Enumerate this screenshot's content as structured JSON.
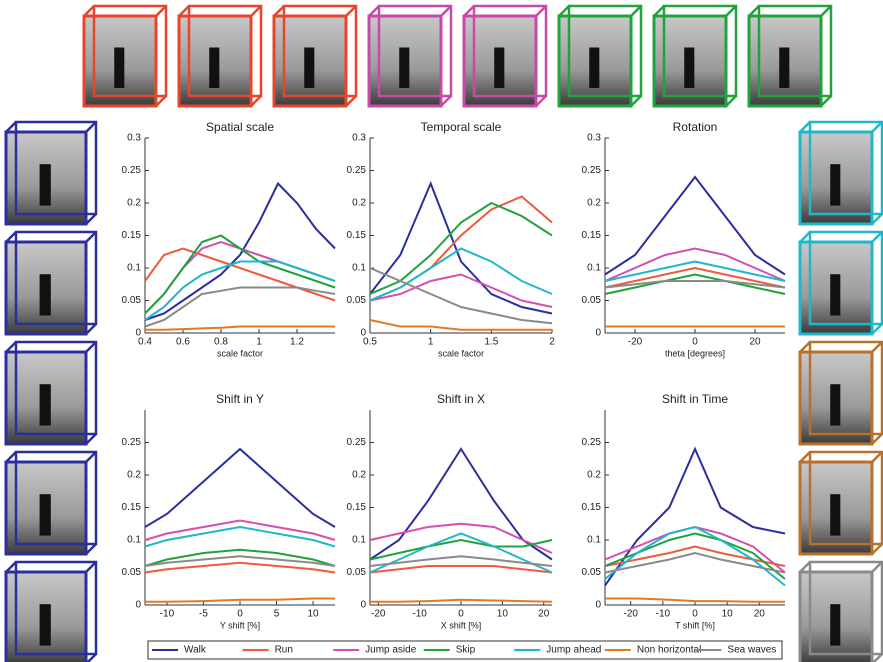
{
  "chart_data": [
    {
      "type": "line",
      "title": "Spatial scale",
      "xlabel": "scale factor",
      "xlim": [
        0.4,
        1.4
      ],
      "xticks": [
        0.4,
        0.6,
        0.8,
        1,
        1.2
      ],
      "ylim": [
        0,
        0.3
      ],
      "yticks": [
        0,
        0.05,
        0.1,
        0.15,
        0.2,
        0.25,
        0.3
      ],
      "x": [
        0.4,
        0.5,
        0.6,
        0.7,
        0.8,
        0.9,
        1.0,
        1.1,
        1.2,
        1.3,
        1.4
      ],
      "series": [
        [
          0.02,
          0.03,
          0.05,
          0.07,
          0.09,
          0.12,
          0.17,
          0.23,
          0.2,
          0.16,
          0.13
        ],
        [
          0.08,
          0.12,
          0.13,
          0.12,
          0.11,
          0.1,
          0.09,
          0.08,
          0.07,
          0.06,
          0.05
        ],
        [
          0.03,
          0.06,
          0.1,
          0.13,
          0.14,
          0.13,
          0.12,
          0.11,
          0.1,
          0.09,
          0.08
        ],
        [
          0.03,
          0.06,
          0.1,
          0.14,
          0.15,
          0.13,
          0.11,
          0.1,
          0.09,
          0.08,
          0.07
        ],
        [
          0.02,
          0.04,
          0.07,
          0.09,
          0.1,
          0.11,
          0.11,
          0.11,
          0.1,
          0.09,
          0.08
        ],
        [
          0.005,
          0.005,
          0.006,
          0.007,
          0.008,
          0.01,
          0.01,
          0.01,
          0.01,
          0.01,
          0.01
        ],
        [
          0.01,
          0.02,
          0.04,
          0.06,
          0.065,
          0.07,
          0.07,
          0.07,
          0.07,
          0.065,
          0.06
        ]
      ]
    },
    {
      "type": "line",
      "title": "Temporal scale",
      "xlabel": "scale factor",
      "xlim": [
        0.5,
        2
      ],
      "xticks": [
        0.5,
        1,
        1.5,
        2
      ],
      "ylim": [
        0,
        0.3
      ],
      "yticks": [
        0,
        0.05,
        0.1,
        0.15,
        0.2,
        0.25,
        0.3
      ],
      "x": [
        0.5,
        0.75,
        1,
        1.25,
        1.5,
        1.75,
        2
      ],
      "series": [
        [
          0.06,
          0.12,
          0.23,
          0.11,
          0.06,
          0.04,
          0.03
        ],
        [
          0.05,
          0.07,
          0.1,
          0.15,
          0.19,
          0.21,
          0.17
        ],
        [
          0.05,
          0.06,
          0.08,
          0.09,
          0.07,
          0.05,
          0.04
        ],
        [
          0.06,
          0.08,
          0.12,
          0.17,
          0.2,
          0.18,
          0.15
        ],
        [
          0.05,
          0.07,
          0.1,
          0.13,
          0.11,
          0.08,
          0.06
        ],
        [
          0.02,
          0.01,
          0.01,
          0.005,
          0.005,
          0.005,
          0.005
        ],
        [
          0.1,
          0.08,
          0.06,
          0.04,
          0.03,
          0.02,
          0.015
        ]
      ]
    },
    {
      "type": "line",
      "title": "Rotation",
      "xlabel": "theta [degrees]",
      "xlim": [
        -30,
        30
      ],
      "xticks": [
        -20,
        0,
        20
      ],
      "ylim": [
        0,
        0.3
      ],
      "yticks": [
        0,
        0.05,
        0.1,
        0.15,
        0.2,
        0.25,
        0.3
      ],
      "x": [
        -30,
        -20,
        -10,
        0,
        10,
        20,
        30
      ],
      "series": [
        [
          0.09,
          0.12,
          0.18,
          0.24,
          0.18,
          0.12,
          0.09
        ],
        [
          0.07,
          0.08,
          0.09,
          0.1,
          0.09,
          0.08,
          0.07
        ],
        [
          0.08,
          0.1,
          0.12,
          0.13,
          0.12,
          0.1,
          0.08
        ],
        [
          0.06,
          0.07,
          0.08,
          0.09,
          0.08,
          0.07,
          0.06
        ],
        [
          0.08,
          0.09,
          0.1,
          0.11,
          0.1,
          0.09,
          0.08
        ],
        [
          0.01,
          0.01,
          0.01,
          0.01,
          0.01,
          0.01,
          0.01
        ],
        [
          0.07,
          0.075,
          0.08,
          0.08,
          0.08,
          0.075,
          0.07
        ]
      ]
    },
    {
      "type": "line",
      "title": "Shift in Y",
      "xlabel": "Y shift [%]",
      "xlim": [
        -13,
        13
      ],
      "xticks": [
        -10,
        -5,
        0,
        5,
        10
      ],
      "ylim": [
        0,
        0.3
      ],
      "yticks": [
        0,
        0.05,
        0.1,
        0.15,
        0.2,
        0.25
      ],
      "x": [
        -13,
        -10,
        -5,
        0,
        5,
        10,
        13
      ],
      "series": [
        [
          0.12,
          0.14,
          0.19,
          0.24,
          0.19,
          0.14,
          0.12
        ],
        [
          0.05,
          0.055,
          0.06,
          0.065,
          0.06,
          0.055,
          0.05
        ],
        [
          0.1,
          0.11,
          0.12,
          0.13,
          0.12,
          0.11,
          0.1
        ],
        [
          0.06,
          0.07,
          0.08,
          0.085,
          0.08,
          0.07,
          0.06
        ],
        [
          0.09,
          0.1,
          0.11,
          0.12,
          0.11,
          0.1,
          0.09
        ],
        [
          0.005,
          0.005,
          0.006,
          0.008,
          0.008,
          0.01,
          0.01
        ],
        [
          0.06,
          0.065,
          0.07,
          0.075,
          0.07,
          0.065,
          0.06
        ]
      ]
    },
    {
      "type": "line",
      "title": "Shift in X",
      "xlabel": "X shift [%]",
      "xlim": [
        -22,
        22
      ],
      "xticks": [
        -20,
        -10,
        0,
        10,
        20
      ],
      "ylim": [
        0,
        0.3
      ],
      "yticks": [
        0,
        0.05,
        0.1,
        0.15,
        0.2,
        0.25
      ],
      "x": [
        -22,
        -15,
        -8,
        0,
        8,
        15,
        22
      ],
      "series": [
        [
          0.07,
          0.1,
          0.16,
          0.24,
          0.16,
          0.1,
          0.07
        ],
        [
          0.05,
          0.055,
          0.06,
          0.06,
          0.06,
          0.055,
          0.05
        ],
        [
          0.1,
          0.11,
          0.12,
          0.125,
          0.12,
          0.1,
          0.08
        ],
        [
          0.07,
          0.08,
          0.09,
          0.1,
          0.09,
          0.09,
          0.1
        ],
        [
          0.05,
          0.07,
          0.09,
          0.11,
          0.09,
          0.07,
          0.05
        ],
        [
          0.005,
          0.005,
          0.006,
          0.008,
          0.007,
          0.006,
          0.005
        ],
        [
          0.06,
          0.065,
          0.07,
          0.075,
          0.07,
          0.065,
          0.06
        ]
      ]
    },
    {
      "type": "line",
      "title": "Shift in Time",
      "xlabel": "T shift [%]",
      "xlim": [
        -28,
        28
      ],
      "xticks": [
        -20,
        -10,
        0,
        10,
        20
      ],
      "ylim": [
        0,
        0.3
      ],
      "yticks": [
        0,
        0.05,
        0.1,
        0.15,
        0.2,
        0.25
      ],
      "x": [
        -28,
        -18,
        -8,
        0,
        8,
        18,
        28
      ],
      "series": [
        [
          0.03,
          0.1,
          0.15,
          0.24,
          0.15,
          0.12,
          0.11
        ],
        [
          0.06,
          0.07,
          0.08,
          0.09,
          0.08,
          0.07,
          0.06
        ],
        [
          0.07,
          0.09,
          0.11,
          0.12,
          0.11,
          0.09,
          0.05
        ],
        [
          0.06,
          0.08,
          0.1,
          0.11,
          0.1,
          0.08,
          0.04
        ],
        [
          0.04,
          0.08,
          0.11,
          0.12,
          0.1,
          0.07,
          0.03
        ],
        [
          0.01,
          0.01,
          0.008,
          0.006,
          0.006,
          0.005,
          0.005
        ],
        [
          0.05,
          0.06,
          0.07,
          0.08,
          0.07,
          0.06,
          0.05
        ]
      ]
    }
  ],
  "legend": [
    {
      "name": "Walk",
      "color": "#2b2f9e"
    },
    {
      "name": "Run",
      "color": "#f05a3c"
    },
    {
      "name": "Jump aside",
      "color": "#d34fb0"
    },
    {
      "name": "Skip",
      "color": "#1fa33a"
    },
    {
      "name": "Jump ahead",
      "color": "#1fb8c8"
    },
    {
      "name": "Non horizontal",
      "color": "#e07a25"
    },
    {
      "name": "Sea waves",
      "color": "#8a8a8a"
    }
  ]
}
